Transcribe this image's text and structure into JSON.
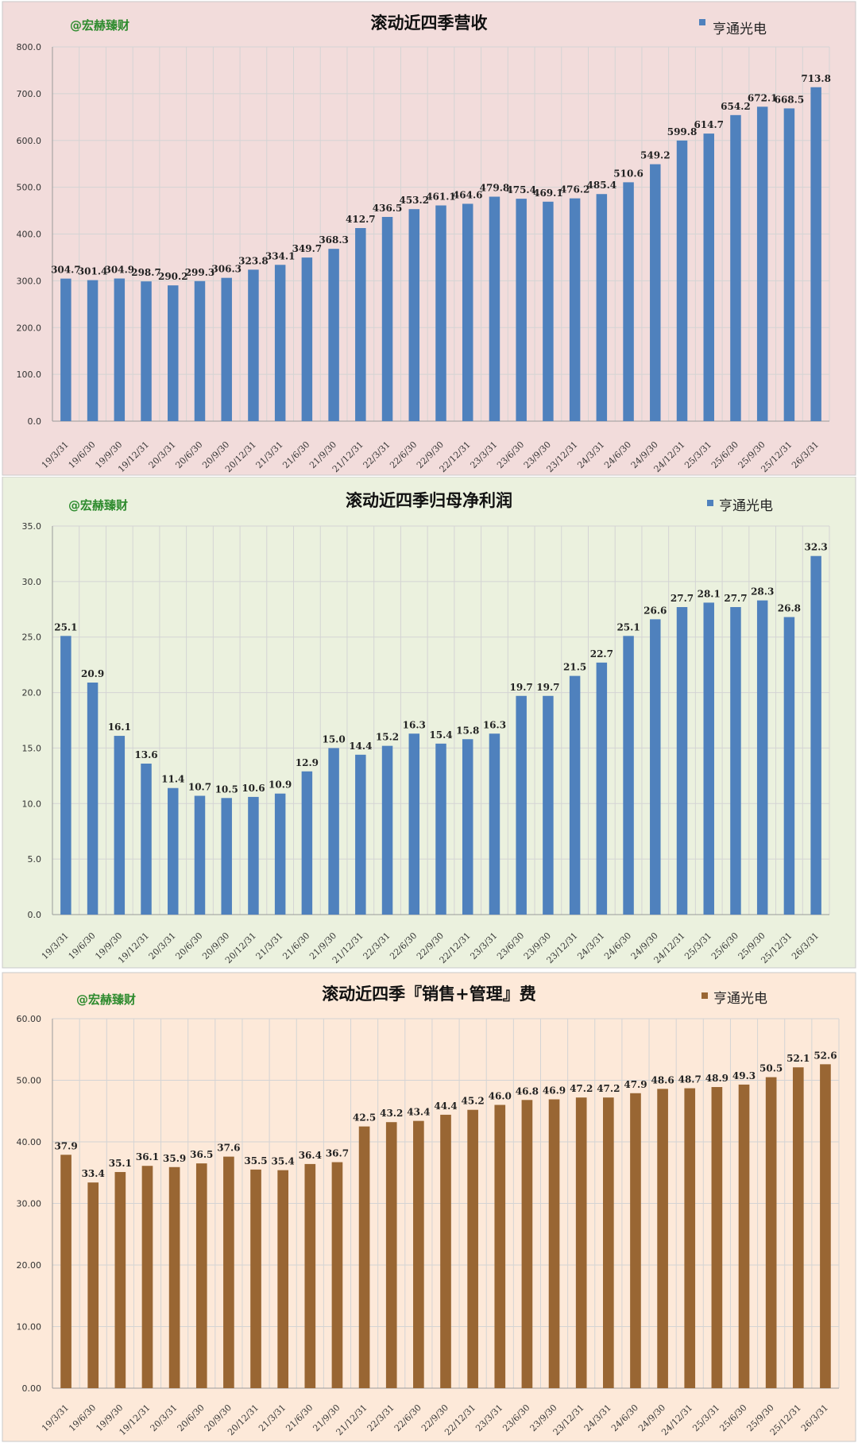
{
  "watermark": "@宏赫臻财",
  "legend_label": "亨通光电",
  "categories": [
    "19/3/31",
    "19/6/30",
    "19/9/30",
    "19/12/31",
    "20/3/31",
    "20/6/30",
    "20/9/30",
    "20/12/31",
    "21/3/31",
    "21/6/30",
    "21/9/30",
    "21/12/31",
    "22/3/31",
    "22/6/30",
    "22/9/30",
    "22/12/31",
    "23/3/31",
    "23/6/30",
    "23/9/30",
    "23/12/31",
    "24/3/31",
    "24/6/30",
    "24/9/30",
    "24/12/31",
    "25/3/31",
    "25/6/30",
    "25/9/30",
    "25/12/31",
    "26/3/31"
  ],
  "colors": {
    "revenue_bg": "#f2dcdb",
    "profit_bg": "#ebf1de",
    "expense_bg": "#fde9d9",
    "blue_bar": "#4f81bd",
    "brown_bar": "#996633",
    "watermark": "#2e8b2e"
  },
  "chart_data": [
    {
      "type": "bar",
      "title": "滚动近四季营收",
      "series": [
        {
          "name": "亨通光电",
          "values": [
            304.7,
            301.4,
            304.9,
            298.7,
            290.2,
            299.3,
            306.3,
            323.8,
            334.1,
            349.7,
            368.3,
            412.7,
            436.5,
            453.2,
            461.1,
            464.6,
            479.8,
            475.4,
            469.1,
            476.2,
            485.4,
            510.6,
            549.2,
            599.8,
            614.7,
            654.2,
            672.1,
            668.5,
            713.8
          ]
        }
      ],
      "yticks": [
        "0.0",
        "100.0",
        "200.0",
        "300.0",
        "400.0",
        "500.0",
        "600.0",
        "700.0",
        "800.0"
      ],
      "labels": [
        "304.7",
        "301.4",
        "304.9",
        "298.7",
        "290.2",
        "299.3",
        "306.3",
        "323.8",
        "334.1",
        "349.7",
        "368.3",
        "412.7",
        "436.5",
        "453.2",
        "461.1",
        "464.6",
        "479.8",
        "475.4",
        "469.1",
        "476.2",
        "485.4",
        "510.6",
        "549.2",
        "599.8",
        "614.7",
        "654.2",
        "672.1",
        "668.5",
        "713.8"
      ],
      "ylim": [
        0,
        800
      ],
      "grid": true,
      "legend": "top-right"
    },
    {
      "type": "bar",
      "title": "滚动近四季归母净利润",
      "series": [
        {
          "name": "亨通光电",
          "values": [
            25.1,
            20.9,
            16.1,
            13.6,
            11.4,
            10.7,
            10.5,
            10.6,
            10.9,
            12.9,
            15.0,
            14.4,
            15.2,
            16.3,
            15.4,
            15.8,
            16.3,
            19.7,
            19.7,
            21.5,
            22.7,
            25.1,
            26.6,
            27.7,
            28.1,
            27.7,
            28.3,
            26.8,
            32.3
          ]
        }
      ],
      "yticks": [
        "0.0",
        "5.0",
        "10.0",
        "15.0",
        "20.0",
        "25.0",
        "30.0",
        "35.0"
      ],
      "labels": [
        "25.1",
        "20.9",
        "16.1",
        "13.6",
        "11.4",
        "10.7",
        "10.5",
        "10.6",
        "10.9",
        "12.9",
        "15.0",
        "14.4",
        "15.2",
        "16.3",
        "15.4",
        "15.8",
        "16.3",
        "19.7",
        "19.7",
        "21.5",
        "22.7",
        "25.1",
        "26.6",
        "27.7",
        "28.1",
        "27.7",
        "28.3",
        "26.8",
        "32.3"
      ],
      "ylim": [
        0,
        35
      ],
      "grid": true,
      "legend": "top-right"
    },
    {
      "type": "bar",
      "title": "滚动近四季『销售+管理』费",
      "series": [
        {
          "name": "亨通光电",
          "values": [
            37.9,
            33.4,
            35.1,
            36.1,
            35.9,
            36.5,
            37.6,
            35.5,
            35.4,
            36.4,
            36.7,
            42.5,
            43.2,
            43.4,
            44.4,
            45.2,
            46.0,
            46.8,
            46.9,
            47.2,
            47.2,
            47.9,
            48.6,
            48.7,
            48.9,
            49.3,
            50.5,
            52.1,
            52.6
          ]
        }
      ],
      "yticks": [
        "0.00",
        "10.00",
        "20.00",
        "30.00",
        "40.00",
        "50.00",
        "60.00"
      ],
      "labels": [
        "37.9",
        "33.4",
        "35.1",
        "36.1",
        "35.9",
        "36.5",
        "37.6",
        "35.5",
        "35.4",
        "36.4",
        "36.7",
        "42.5",
        "43.2",
        "43.4",
        "44.4",
        "45.2",
        "46.0",
        "46.8",
        "46.9",
        "47.2",
        "47.2",
        "47.9",
        "48.6",
        "48.7",
        "48.9",
        "49.3",
        "50.5",
        "52.1",
        "52.6"
      ],
      "ylim": [
        0,
        60
      ],
      "grid": true,
      "legend": "top-right"
    }
  ]
}
